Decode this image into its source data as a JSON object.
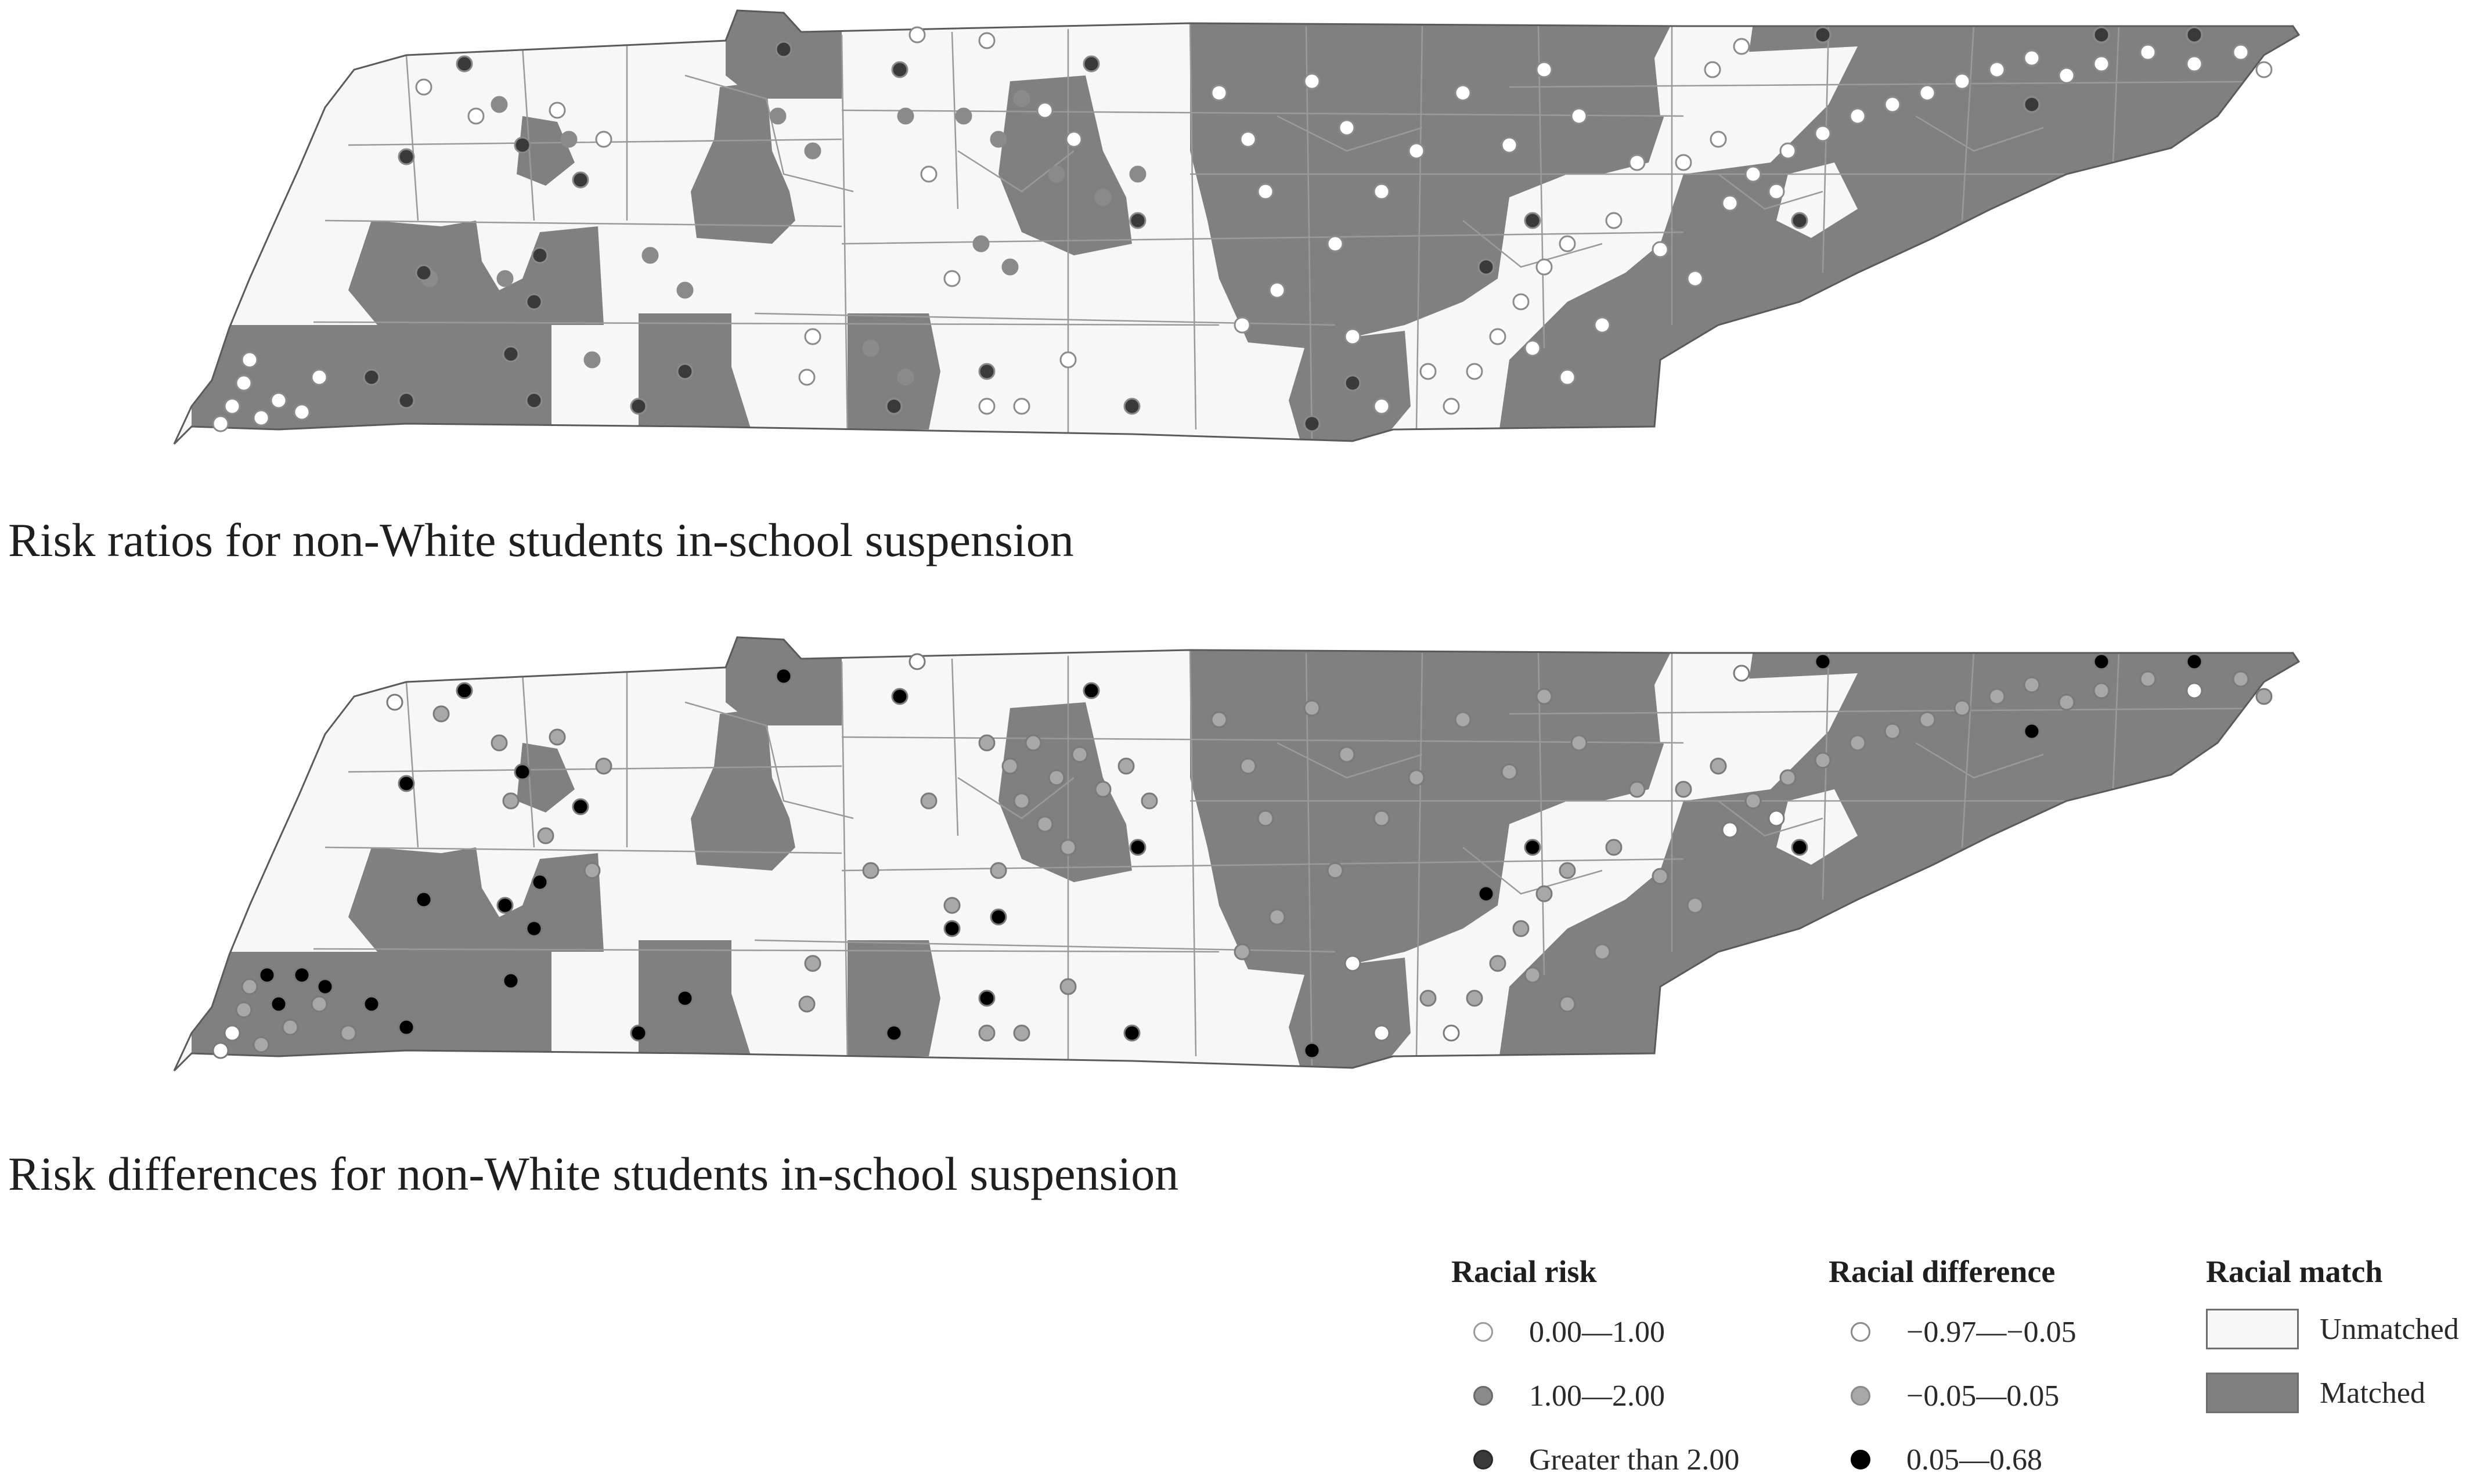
{
  "captions": {
    "top": "Risk ratios for non-White students in-school suspension",
    "bottom": "Risk differences for non-White students in-school suspension"
  },
  "legend": {
    "racial_risk": {
      "title": "Racial risk",
      "items": [
        {
          "label": "0.00—1.00",
          "color": "#ffffff"
        },
        {
          "label": "1.00—2.00",
          "color": "#8a8a8a"
        },
        {
          "label": "Greater than 2.00",
          "color": "#3a3a3a"
        }
      ]
    },
    "racial_difference": {
      "title": "Racial difference",
      "items": [
        {
          "label": "−0.97—−0.05",
          "color": "#ffffff"
        },
        {
          "label": "−0.05—0.05",
          "color": "#a8a8a8"
        },
        {
          "label": "0.05—0.68",
          "color": "#000000"
        }
      ]
    },
    "racial_match": {
      "title": "Racial match",
      "items": [
        {
          "label": "Unmatched",
          "color": "#f7f7f7"
        },
        {
          "label": "Matched",
          "color": "#808080"
        }
      ]
    }
  },
  "colors": {
    "unmatched_fill": "#f7f7f7",
    "matched_fill": "#808080",
    "county_border": "#9a9a9a"
  }
}
